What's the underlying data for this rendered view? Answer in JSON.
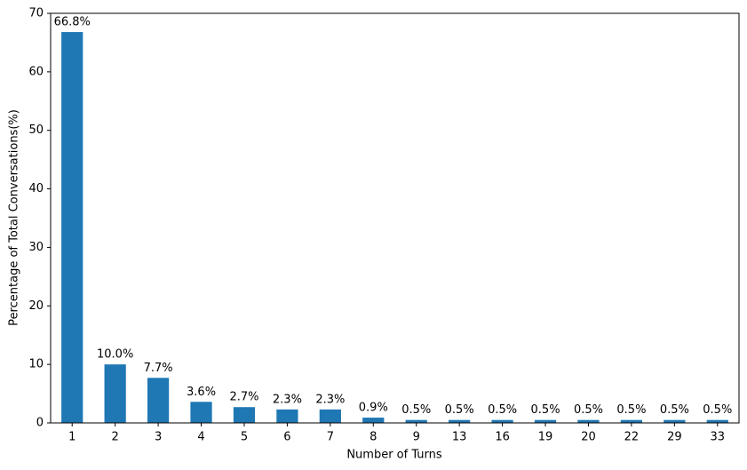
{
  "chart_data": {
    "type": "bar",
    "x_label": "Number of Turns",
    "y_label": "Percentage of Total Conversations(%)",
    "categories": [
      "1",
      "2",
      "3",
      "4",
      "5",
      "6",
      "7",
      "8",
      "9",
      "13",
      "16",
      "19",
      "20",
      "22",
      "29",
      "33"
    ],
    "values": [
      66.8,
      10.0,
      7.7,
      3.6,
      2.7,
      2.3,
      2.3,
      0.9,
      0.5,
      0.5,
      0.5,
      0.5,
      0.5,
      0.5,
      0.5,
      0.5
    ],
    "value_labels": [
      "66.8%",
      "10.0%",
      "7.7%",
      "3.6%",
      "2.7%",
      "2.3%",
      "2.3%",
      "0.9%",
      "0.5%",
      "0.5%",
      "0.5%",
      "0.5%",
      "0.5%",
      "0.5%",
      "0.5%",
      "0.5%"
    ],
    "color": "#1f77b4",
    "ylim": [
      0,
      70
    ],
    "yticks": [
      0,
      10,
      20,
      30,
      40,
      50,
      60,
      70
    ],
    "grid": false
  }
}
